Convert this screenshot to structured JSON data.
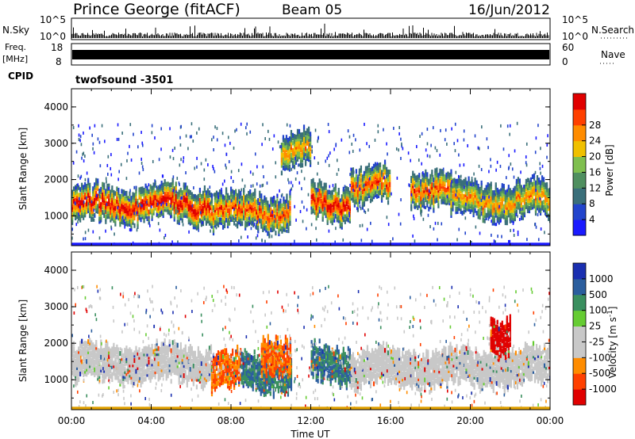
{
  "header": {
    "station": "Prince George (fitACF)",
    "beam": "Beam 05",
    "date": "16/Jun/2012"
  },
  "strips": {
    "nsky_label": "N.Sky",
    "nsky_ticks": [
      "10^5",
      "10^0"
    ],
    "nsearch_label": "N.Search",
    "nsearch_ticks": [
      "10^5",
      "10^0"
    ],
    "freq_label_1": "Freq.",
    "freq_label_2": "[MHz]",
    "freq_ticks": [
      "18",
      "8"
    ],
    "nave_label": "Nave",
    "nave_ticks": [
      "60",
      "0"
    ],
    "cpid_label": "CPID",
    "cpid_value": "twofsound -3501"
  },
  "colors": {
    "power": [
      "#1a1aff",
      "#2244cc",
      "#3a6f7a",
      "#4f8f5f",
      "#7fbf4f",
      "#f0c000",
      "#ff8c00",
      "#ff4000",
      "#e00000"
    ],
    "velocity": [
      "#e00000",
      "#ff4000",
      "#ff8c00",
      "#c8c8c8",
      "#c8c8c8",
      "#66cc33",
      "#3a8f5f",
      "#2b5e9e",
      "#1a2fb0"
    ]
  },
  "chart_data": [
    {
      "type": "heatmap",
      "title": "",
      "xlabel": "",
      "ylabel": "Slant Range [km]",
      "xlim": [
        "00:00",
        "00:00"
      ],
      "ylim": [
        180,
        4500
      ],
      "y_ticks": [
        "1000",
        "2000",
        "3000",
        "4000"
      ],
      "colorbar_label": "Power [dB]",
      "colorbar_ticks": [
        "4",
        "8",
        "12",
        "16",
        "20",
        "24",
        "28"
      ],
      "echo_bands": [
        {
          "t_start": 0,
          "t_end": 7,
          "range_center_km": 1300,
          "peak_db": 28
        },
        {
          "t_start": 7,
          "t_end": 11,
          "range_center_km": 1100,
          "peak_db": 24
        },
        {
          "t_start": 10.5,
          "t_end": 12,
          "range_center_km": 2800,
          "peak_db": 20
        },
        {
          "t_start": 12,
          "t_end": 14,
          "range_center_km": 1300,
          "peak_db": 28
        },
        {
          "t_start": 14,
          "t_end": 16,
          "range_center_km": 1800,
          "peak_db": 24
        },
        {
          "t_start": 17,
          "t_end": 19,
          "range_center_km": 1750,
          "peak_db": 24
        },
        {
          "t_start": 19,
          "t_end": 24,
          "range_center_km": 1400,
          "peak_db": 20
        }
      ]
    },
    {
      "type": "heatmap",
      "title": "",
      "xlabel": "Time UT",
      "ylabel": "Slant Range [km]",
      "xlim": [
        "00:00",
        "00:00"
      ],
      "x_ticks": [
        "00:00",
        "04:00",
        "08:00",
        "12:00",
        "16:00",
        "20:00",
        "00:00"
      ],
      "ylim": [
        180,
        4500
      ],
      "y_ticks": [
        "1000",
        "2000",
        "3000",
        "4000"
      ],
      "colorbar_label": "Velocity [m s",
      "colorbar_unit_exp": "-1",
      "colorbar_close": "]",
      "colorbar_ticks": [
        "1000",
        "500",
        "100",
        "25",
        "-25",
        "-100",
        "-500",
        "-1000"
      ],
      "echo_bands": [
        {
          "t_start": 0,
          "t_end": 7,
          "range_center_km": 1400,
          "velocity_ms": 0
        },
        {
          "t_start": 7,
          "t_end": 8.5,
          "range_center_km": 1200,
          "velocity_ms": -300
        },
        {
          "t_start": 8.5,
          "t_end": 11,
          "range_center_km": 1200,
          "velocity_ms": 150
        },
        {
          "t_start": 9.5,
          "t_end": 11,
          "range_center_km": 1700,
          "velocity_ms": -300
        },
        {
          "t_start": 12,
          "t_end": 14,
          "range_center_km": 1400,
          "velocity_ms": 200
        },
        {
          "t_start": 14,
          "t_end": 24,
          "range_center_km": 1300,
          "velocity_ms": 0
        },
        {
          "t_start": 21,
          "t_end": 22,
          "range_center_km": 2200,
          "velocity_ms": -600
        }
      ]
    }
  ]
}
